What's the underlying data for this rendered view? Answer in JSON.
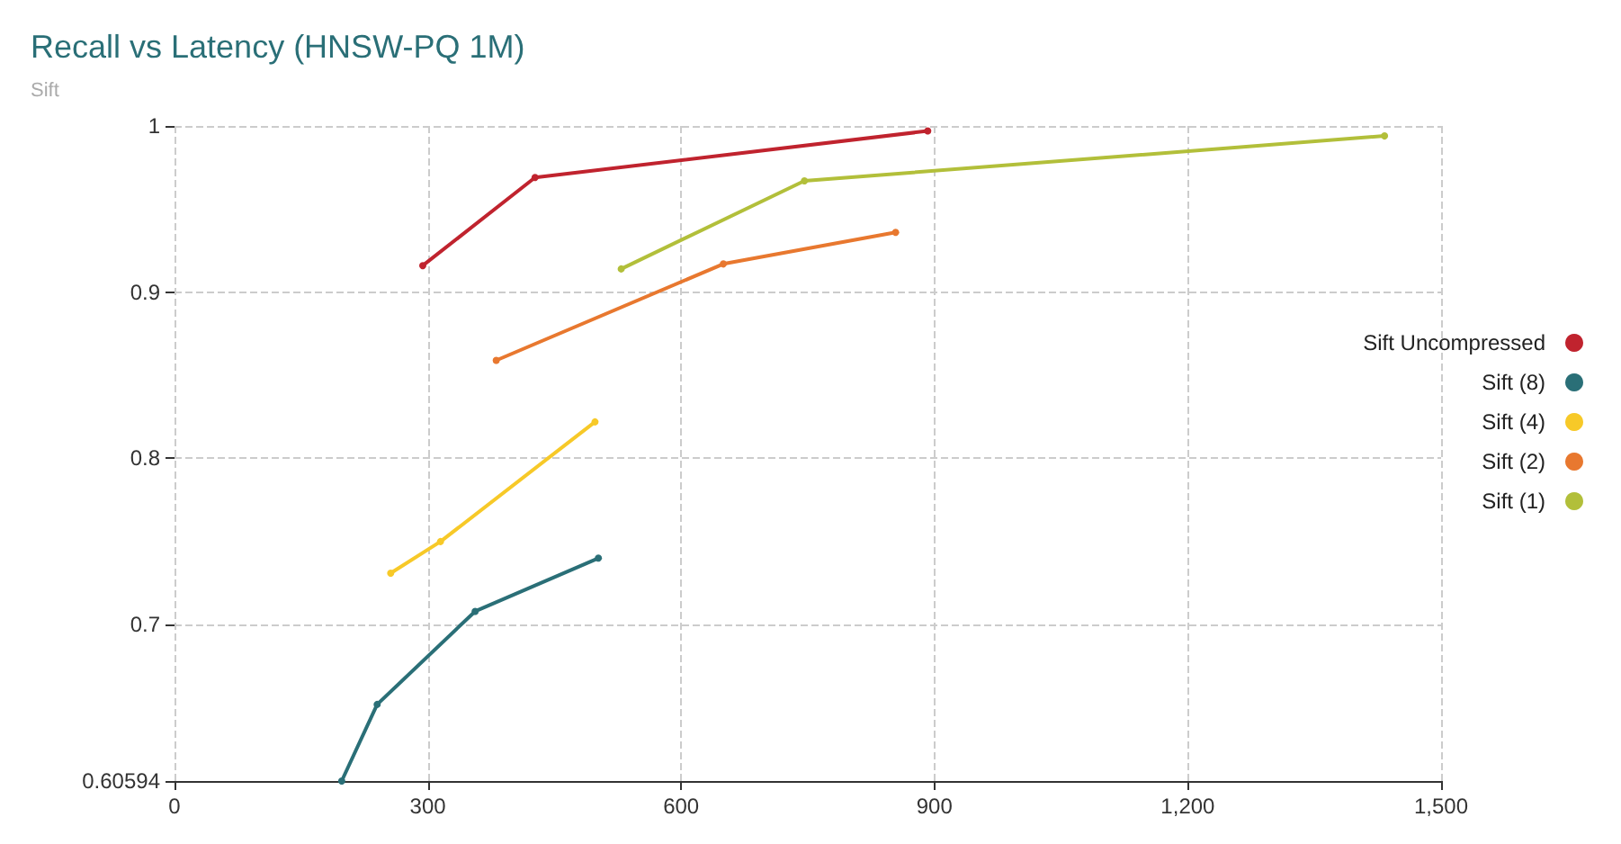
{
  "chart_data": {
    "type": "line",
    "title": "Recall vs Latency (HNSW-PQ 1M)",
    "subtitle": "Sift",
    "xlim": [
      0,
      1500
    ],
    "xticks": [
      0,
      300,
      600,
      900,
      {
        "value": 1200,
        "label": "1,200"
      },
      {
        "value": 1500,
        "label": "1,500"
      }
    ],
    "ylim": [
      0.60594,
      1
    ],
    "yticks": [
      0.60594,
      0.7,
      0.8,
      0.9,
      1
    ],
    "grid": true,
    "legend": "right",
    "marker": "circle",
    "line_style": "solid",
    "series": [
      {
        "name": "Sift Uncompressed",
        "color": "#c0232e",
        "x": [
          294,
          427,
          892
        ],
        "values": [
          0.916,
          0.969,
          0.997
        ]
      },
      {
        "name": "Sift (8)",
        "color": "#2a6f77",
        "x": [
          198,
          240,
          356,
          502
        ],
        "values": [
          0.60594,
          0.652,
          0.708,
          0.74
        ]
      },
      {
        "name": "Sift (4)",
        "color": "#f7c928",
        "x": [
          256,
          315,
          498
        ],
        "values": [
          0.731,
          0.75,
          0.822
        ]
      },
      {
        "name": "Sift (2)",
        "color": "#e8782f",
        "x": [
          381,
          650,
          854
        ],
        "values": [
          0.859,
          0.917,
          0.936
        ]
      },
      {
        "name": "Sift (1)",
        "color": "#b2bf3a",
        "x": [
          529,
          746,
          1433
        ],
        "values": [
          0.914,
          0.967,
          0.994
        ]
      }
    ]
  }
}
